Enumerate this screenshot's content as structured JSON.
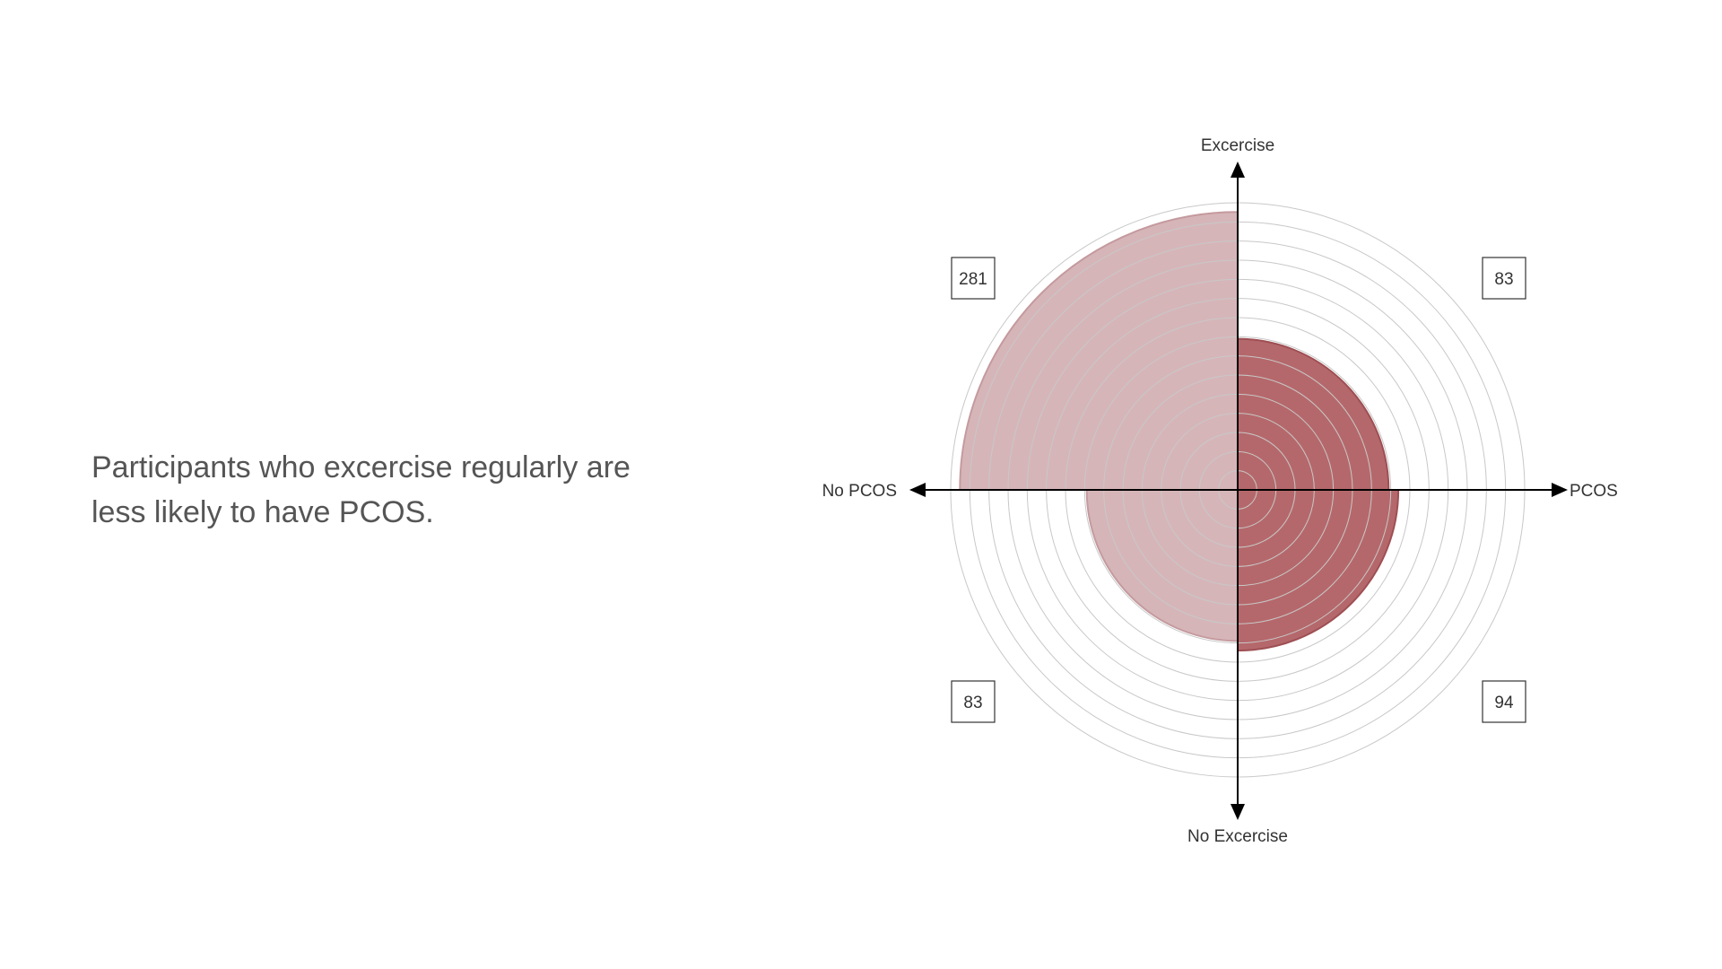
{
  "headline": "Participants who excercise regularly are less likely to have PCOS.",
  "chart_data": {
    "type": "polar-quadrant",
    "axes": {
      "top": "Excercise",
      "bottom": "No Excercise",
      "left": "No PCOS",
      "right": "PCOS"
    },
    "quadrants": [
      {
        "position": "top-left",
        "x": "No PCOS",
        "y": "Excercise",
        "value": 281
      },
      {
        "position": "top-right",
        "x": "PCOS",
        "y": "Excercise",
        "value": 83
      },
      {
        "position": "bottom-left",
        "x": "No PCOS",
        "y": "No Excercise",
        "value": 83
      },
      {
        "position": "bottom-right",
        "x": "PCOS",
        "y": "No Excercise",
        "value": 94
      }
    ],
    "radial_max": 300,
    "ring_step": 20,
    "grid": true,
    "colors": {
      "no_pcos_fill": "#d6b5b8",
      "pcos_fill": "#b5686b",
      "no_pcos_stroke": "#c49a9e",
      "pcos_stroke": "#9e4f53",
      "ring": "#c8c8c8",
      "axis": "#000000"
    }
  }
}
